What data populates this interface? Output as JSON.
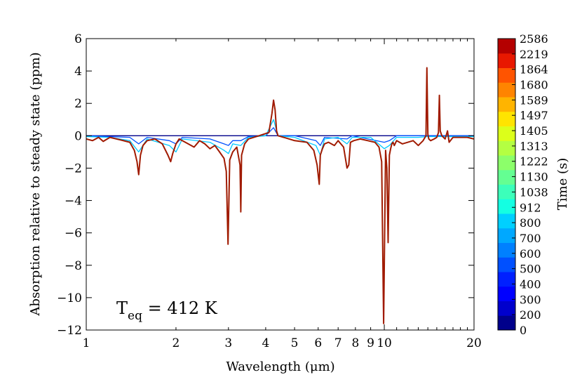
{
  "chart_data": {
    "type": "line",
    "title": "",
    "xlabel": "Wavelength (μm)",
    "ylabel": "Absorption relative to steady state (ppm)",
    "xscale": "log",
    "xlim": [
      1,
      20
    ],
    "ylim": [
      -12,
      6
    ],
    "xticks": [
      1,
      2,
      3,
      4,
      5,
      6,
      7,
      8,
      9,
      10,
      20
    ],
    "xtick_labels": [
      "1",
      "2",
      "3",
      "4",
      "5",
      "6",
      "7",
      "8",
      "9",
      "10",
      "20"
    ],
    "yticks": [
      -12,
      -10,
      -8,
      -6,
      -4,
      -2,
      0,
      2,
      4,
      6
    ],
    "ytick_labels": [
      "−12",
      "−10",
      "−8",
      "−6",
      "−4",
      "−2",
      "0",
      "2",
      "4",
      "6"
    ],
    "annotation": {
      "base": "T",
      "sub": "eq",
      "text": " = 412 K"
    },
    "colorbar": {
      "label": "Time (s)",
      "ticks": [
        "0",
        "200",
        "300",
        "400",
        "500",
        "600",
        "700",
        "800",
        "912",
        "1038",
        "1130",
        "1222",
        "1313",
        "1405",
        "1497",
        "1589",
        "1680",
        "1864",
        "2219",
        "2586"
      ],
      "colors": [
        "#00008b",
        "#0000cd",
        "#0000ff",
        "#0020ff",
        "#0050ff",
        "#0080ff",
        "#00a8ff",
        "#00d0ff",
        "#14ffe2",
        "#3cffba",
        "#64ff92",
        "#8cff6a",
        "#b4ff42",
        "#dcff1a",
        "#ffe400",
        "#ffb400",
        "#ff8400",
        "#ff5400",
        "#e81800",
        "#b40000"
      ]
    },
    "series": [
      {
        "name": "2586 s",
        "color": "#a01a00",
        "x": [
          1.0,
          1.05,
          1.1,
          1.14,
          1.2,
          1.3,
          1.4,
          1.45,
          1.48,
          1.5,
          1.52,
          1.55,
          1.6,
          1.7,
          1.8,
          1.88,
          1.92,
          1.95,
          2.0,
          2.05,
          2.15,
          2.3,
          2.4,
          2.5,
          2.6,
          2.7,
          2.8,
          2.9,
          2.95,
          2.99,
          3.03,
          3.1,
          3.2,
          3.28,
          3.3,
          3.32,
          3.4,
          3.5,
          3.8,
          4.1,
          4.2,
          4.25,
          4.3,
          4.35,
          4.4,
          4.6,
          5.0,
          5.5,
          5.8,
          5.95,
          6.05,
          6.1,
          6.2,
          6.3,
          6.5,
          6.8,
          7.0,
          7.3,
          7.5,
          7.6,
          7.7,
          7.9,
          8.3,
          8.8,
          9.3,
          9.6,
          9.8,
          9.95,
          10.1,
          10.2,
          10.3,
          10.4,
          10.5,
          10.6,
          10.7,
          10.8,
          11.0,
          11.5,
          12.0,
          12.5,
          13.0,
          13.5,
          13.8,
          13.9,
          14.0,
          14.1,
          14.3,
          14.7,
          15.0,
          15.2,
          15.3,
          15.4,
          15.6,
          16.0,
          16.3,
          16.5,
          17.0,
          18.0,
          19.0,
          20.0
        ],
        "y": [
          -0.2,
          -0.3,
          -0.1,
          -0.35,
          -0.1,
          -0.25,
          -0.4,
          -0.9,
          -1.6,
          -2.4,
          -1.2,
          -0.6,
          -0.3,
          -0.2,
          -0.5,
          -1.2,
          -1.6,
          -1.1,
          -0.5,
          -0.2,
          -0.4,
          -0.7,
          -0.3,
          -0.5,
          -0.8,
          -0.6,
          -1.0,
          -1.4,
          -2.2,
          -6.7,
          -1.5,
          -1.0,
          -0.7,
          -1.8,
          -4.7,
          -1.2,
          -0.5,
          -0.2,
          0.0,
          0.2,
          1.4,
          2.2,
          1.6,
          0.3,
          0.0,
          -0.1,
          -0.3,
          -0.4,
          -0.9,
          -1.8,
          -3.0,
          -1.2,
          -0.8,
          -0.5,
          -0.4,
          -0.6,
          -0.3,
          -0.7,
          -2.0,
          -1.8,
          -0.4,
          -0.3,
          -0.2,
          -0.3,
          -0.4,
          -0.7,
          -1.6,
          -11.6,
          -0.9,
          -2.0,
          -6.6,
          -1.2,
          -0.8,
          -0.5,
          -0.4,
          -0.6,
          -0.3,
          -0.5,
          -0.4,
          -0.3,
          -0.6,
          -0.3,
          0.0,
          4.2,
          0.1,
          -0.2,
          -0.3,
          -0.2,
          -0.1,
          0.2,
          2.5,
          0.3,
          0.0,
          -0.2,
          0.3,
          -0.4,
          -0.1,
          -0.1,
          -0.1,
          -0.2
        ]
      },
      {
        "name": "912 s",
        "color": "#00c8ff",
        "x": [
          1.0,
          1.2,
          1.4,
          1.5,
          1.6,
          1.9,
          2.0,
          2.1,
          2.6,
          2.9,
          3.0,
          3.1,
          3.3,
          3.5,
          4.0,
          4.25,
          4.4,
          5.0,
          5.9,
          6.1,
          6.3,
          7.0,
          7.5,
          7.8,
          9.0,
          10.0,
          10.4,
          11.0,
          13.0,
          14.0,
          16.0,
          20.0
        ],
        "y": [
          -0.05,
          -0.1,
          -0.3,
          -1.0,
          -0.2,
          -0.6,
          -1.0,
          -0.2,
          -0.4,
          -0.9,
          -1.1,
          -0.5,
          -0.6,
          -0.1,
          0.0,
          1.0,
          0.0,
          -0.1,
          -0.6,
          -1.2,
          -0.2,
          -0.1,
          -0.5,
          -0.1,
          -0.1,
          -0.8,
          -0.6,
          -0.1,
          -0.1,
          -0.05,
          -0.05,
          -0.05
        ]
      },
      {
        "name": "500 s",
        "color": "#0050ff",
        "x": [
          1.0,
          1.4,
          1.5,
          1.6,
          1.9,
          2.0,
          2.1,
          2.6,
          2.9,
          3.0,
          3.1,
          3.3,
          3.5,
          4.0,
          4.25,
          4.4,
          5.0,
          5.9,
          6.1,
          6.3,
          7.5,
          7.8,
          10.0,
          10.4,
          11.0,
          14.0,
          20.0
        ],
        "y": [
          0.0,
          -0.1,
          -0.5,
          -0.1,
          -0.3,
          -0.5,
          -0.1,
          -0.2,
          -0.5,
          -0.6,
          -0.3,
          -0.3,
          -0.05,
          0.0,
          0.5,
          0.0,
          0.0,
          -0.3,
          -0.6,
          -0.1,
          -0.2,
          0.0,
          -0.4,
          -0.3,
          0.0,
          0.0,
          0.0
        ]
      },
      {
        "name": "0 s",
        "color": "#00008b",
        "x": [
          1.0,
          20.0
        ],
        "y": [
          0.0,
          0.0
        ]
      }
    ]
  }
}
